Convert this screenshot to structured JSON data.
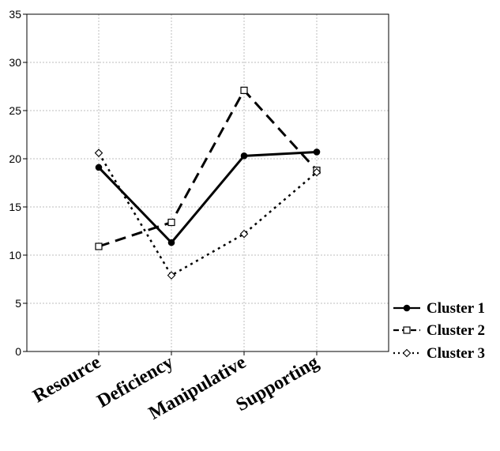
{
  "chart_data": {
    "type": "line",
    "title": "",
    "xlabel": "",
    "ylabel": "",
    "categories": [
      "Resource",
      "Deficiency",
      "Manipulative",
      "Supporting"
    ],
    "ylim": [
      0,
      35
    ],
    "yticks": [
      "0",
      "5",
      "10",
      "15",
      "20",
      "25",
      "30",
      "35"
    ],
    "grid": true,
    "legend_position": "right",
    "series": [
      {
        "name": "Cluster 1",
        "values": [
          19.1,
          11.3,
          20.3,
          20.7
        ],
        "line": "solid",
        "marker": "filled-circle",
        "color": "#000000"
      },
      {
        "name": "Cluster 2",
        "values": [
          10.9,
          13.4,
          27.1,
          18.8
        ],
        "line": "dashed",
        "marker": "open-square",
        "color": "#000000"
      },
      {
        "name": "Cluster 3",
        "values": [
          20.6,
          7.9,
          12.2,
          18.6
        ],
        "line": "dotted",
        "marker": "open-diamond",
        "color": "#000000"
      }
    ]
  }
}
